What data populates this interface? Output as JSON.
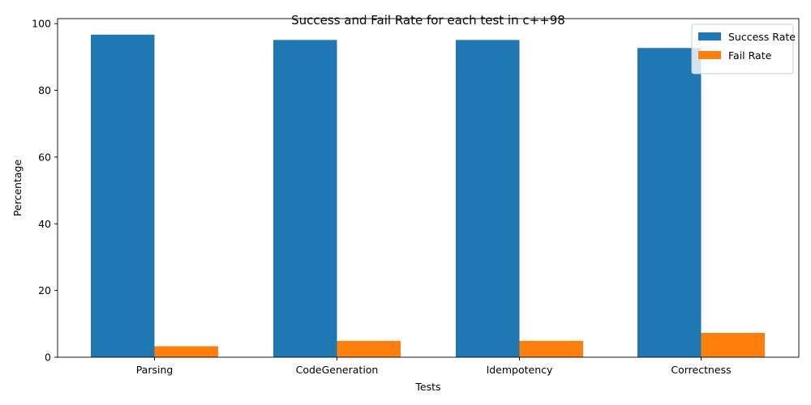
{
  "chart_data": {
    "type": "bar",
    "title": "Success and Fail Rate for each test in c++98",
    "xlabel": "Tests",
    "ylabel": "Percentage",
    "categories": [
      "Parsing",
      "CodeGeneration",
      "Idempotency",
      "Correctness"
    ],
    "series": [
      {
        "name": "Success Rate",
        "values": [
          96.7,
          95.1,
          95.1,
          92.7
        ],
        "color": "#1f77b4"
      },
      {
        "name": "Fail Rate",
        "values": [
          3.3,
          4.9,
          4.9,
          7.3
        ],
        "color": "#ff7f0e"
      }
    ],
    "ylim": [
      0,
      101.5
    ],
    "yticks": [
      0,
      20,
      40,
      60,
      80,
      100
    ],
    "legend_position": "top-right",
    "grid": false
  }
}
